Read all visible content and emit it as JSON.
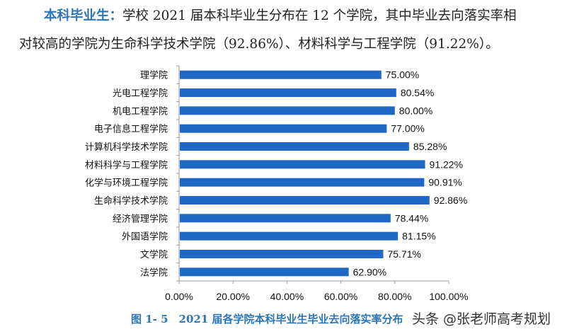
{
  "paragraph": {
    "label": "本科毕业生：",
    "line1": "学校 2021 届本科毕业生分布在 12 个学院，其中毕业去向落实率相",
    "line2": "对较高的学院为生命科学技术学院（92.86%）、材料科学与工程学院（91.22%）。"
  },
  "chart_data": {
    "type": "bar",
    "orientation": "horizontal",
    "categories": [
      "理学院",
      "光电工程学院",
      "机电工程学院",
      "电子信息工程学院",
      "计算机科学技术学院",
      "材料科学与工程学院",
      "化学与环境工程学院",
      "生命科学技术学院",
      "经济管理学院",
      "外国语学院",
      "文学院",
      "法学院"
    ],
    "values": [
      75.0,
      80.54,
      80.0,
      77.0,
      85.28,
      91.22,
      90.91,
      92.86,
      78.44,
      81.15,
      75.71,
      62.9
    ],
    "data_labels": [
      "75.00%",
      "80.54%",
      "80.00%",
      "77.00%",
      "85.28%",
      "91.22%",
      "90.91%",
      "92.86%",
      "78.44%",
      "81.15%",
      "75.71%",
      "62.90%"
    ],
    "xticks": [
      "0.00%",
      "20.00%",
      "40.00%",
      "60.00%",
      "80.00%",
      "100.00%"
    ],
    "xlim": [
      0,
      100
    ],
    "grid": false,
    "bar_color": "#1f68c3",
    "title": "图 1- 5　2021 届各学院本科毕业生毕业去向落实率分布"
  },
  "watermark": "头条 @张老师高考规划"
}
